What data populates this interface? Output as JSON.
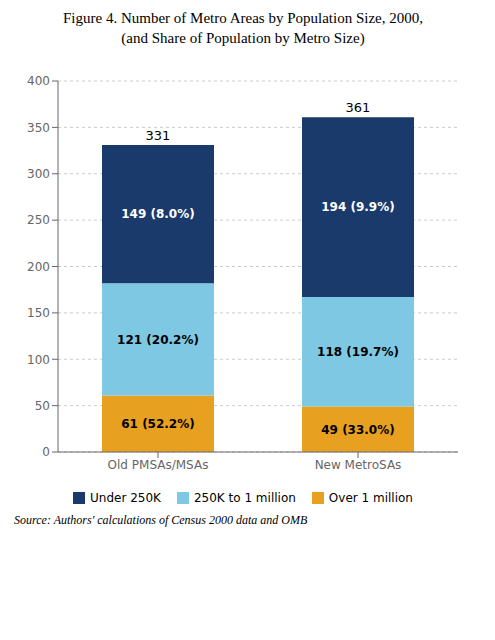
{
  "chart_data": {
    "type": "bar",
    "title": "Figure 4. Number of Metro Areas by Population Size, 2000,\n(and Share of Population by Metro Size)",
    "categories": [
      "Old PMSAs/MSAs",
      "New MetroSAs"
    ],
    "stacked": true,
    "series": [
      {
        "name": "Over 1 million",
        "color": "#e8a020",
        "values": [
          61,
          49
        ],
        "value_labels": [
          "61 (52.2%)",
          "49 (33.0%)"
        ]
      },
      {
        "name": "250K to 1 million",
        "color": "#7ec8e3",
        "values": [
          121,
          118
        ],
        "value_labels": [
          "121 (20.2%)",
          "118 (19.7%)"
        ]
      },
      {
        "name": "Under 250K",
        "color": "#1a3a6b",
        "values": [
          149,
          194
        ],
        "value_labels": [
          "149 (8.0%)",
          "194 (9.9%)"
        ]
      }
    ],
    "totals": [
      331,
      361
    ],
    "ylim": [
      0,
      400
    ],
    "yticks": [
      0,
      50,
      100,
      150,
      200,
      250,
      300,
      350,
      400
    ],
    "grid": true,
    "legend": "bottom",
    "data_labels": true,
    "annotations": [
      "Source: Authors' calculations of Census 2000 data and OMB"
    ]
  }
}
